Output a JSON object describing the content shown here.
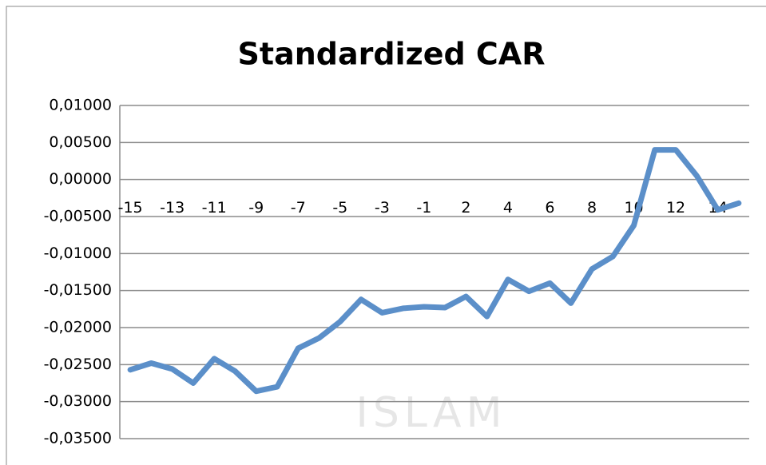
{
  "chart_data": {
    "type": "line",
    "title": "Standardized CAR",
    "watermark": "ISLAM",
    "categories": [
      "-15",
      null,
      "-13",
      null,
      "-11",
      null,
      "-9",
      null,
      "-7",
      null,
      "-5",
      null,
      "-3",
      null,
      "-1",
      null,
      "2",
      null,
      "4",
      null,
      "6",
      null,
      "8",
      null,
      "10",
      null,
      "12",
      null,
      "14",
      null
    ],
    "series": [
      {
        "name": "Standardized CAR",
        "color": "#5b8fc9",
        "values": [
          -0.0257,
          -0.0248,
          -0.0256,
          -0.0275,
          -0.0242,
          -0.0259,
          -0.0286,
          -0.028,
          -0.0228,
          -0.0214,
          -0.0192,
          -0.0162,
          -0.018,
          -0.0174,
          -0.0172,
          -0.0173,
          -0.0158,
          -0.0185,
          -0.0135,
          -0.0151,
          -0.014,
          -0.0167,
          -0.0121,
          -0.0104,
          -0.0062,
          0.004,
          0.004,
          0.0005,
          -0.0041,
          -0.0032
        ]
      }
    ],
    "ylim": [
      -0.035,
      0.01
    ],
    "yticks": [
      {
        "value": -0.035,
        "label": "-0,03500"
      },
      {
        "value": -0.03,
        "label": "-0,03000"
      },
      {
        "value": -0.025,
        "label": "-0,02500"
      },
      {
        "value": -0.02,
        "label": "-0,02000"
      },
      {
        "value": -0.015,
        "label": "-0,01500"
      },
      {
        "value": -0.01,
        "label": "-0,01000"
      },
      {
        "value": -0.005,
        "label": "-0,00500"
      },
      {
        "value": 0,
        "label": "0,00000"
      },
      {
        "value": 0.005,
        "label": "0,00500"
      },
      {
        "value": 0.01,
        "label": "0,01000"
      }
    ],
    "grid": true
  }
}
